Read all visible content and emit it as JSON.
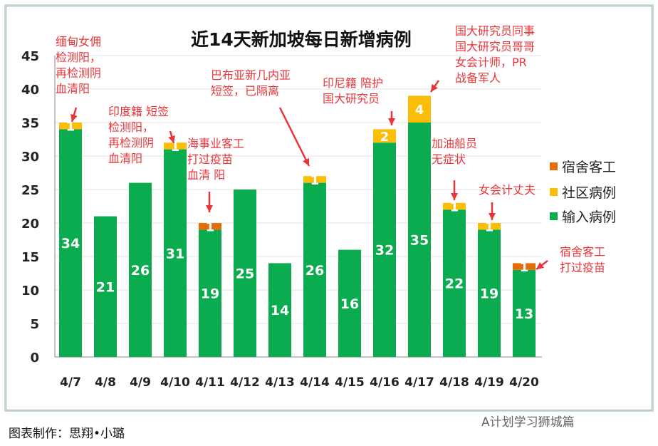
{
  "chart_data": {
    "type": "bar",
    "stacked": true,
    "title": "近14天新加坡每日新增病例",
    "categories": [
      "4/7",
      "4/8",
      "4/9",
      "4/10",
      "4/11",
      "4/12",
      "4/13",
      "4/14",
      "4/15",
      "4/16",
      "4/17",
      "4/18",
      "4/19",
      "4/20"
    ],
    "series": [
      {
        "name": "输入病例",
        "color": "#0bab4f",
        "values": [
          34,
          21,
          26,
          31,
          19,
          25,
          14,
          26,
          16,
          32,
          35,
          22,
          19,
          13
        ]
      },
      {
        "name": "社区病例",
        "color": "#fbbd06",
        "values": [
          1,
          0,
          0,
          1,
          0,
          0,
          0,
          1,
          0,
          2,
          4,
          1,
          1,
          0
        ]
      },
      {
        "name": "宿舍客工",
        "color": "#e46c0a",
        "values": [
          0,
          0,
          0,
          0,
          1,
          0,
          0,
          0,
          0,
          0,
          0,
          0,
          0,
          1
        ]
      }
    ],
    "ylim": [
      0,
      45
    ],
    "yticks": [
      0,
      5,
      10,
      15,
      20,
      25,
      30,
      35,
      40,
      45
    ],
    "grid": true,
    "legend": "right",
    "annotations": [
      "缅甸女佣\n检测阳，\n再检测阴\n血清阳",
      "印度籍 短签\n检测阳，\n再检测阴\n血清阳",
      "海事业客工\n打过疫苗\n血清 阳",
      "巴布亚新几内亚\n短签，已隔离",
      "印尼籍 陪护\n国大研究员",
      "国大研究员同事\n国大研究员哥哥\n女会计师，PR\n战备军人",
      "加油船员\n无症状",
      "女会计丈夫",
      "宿舍客工\n打过疫苗"
    ]
  },
  "footer": "图表制作：思翔•小璐",
  "watermark": "A计划学习狮城篇"
}
